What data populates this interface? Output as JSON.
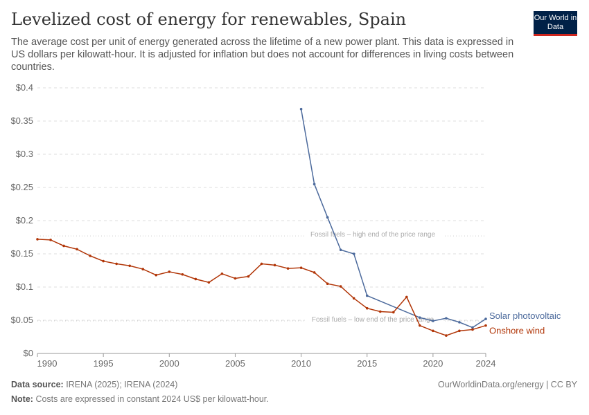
{
  "header": {
    "title": "Levelized cost of energy for renewables, Spain",
    "subtitle": "The average cost per unit of energy generated across the lifetime of a new power plant. This data is expressed in US dollars per kilowatt-hour. It is adjusted for inflation but does not account for differences in living costs between countries.",
    "logo": "Our World in Data"
  },
  "chart_data": {
    "type": "line",
    "x_ticks": [
      1990,
      1995,
      2000,
      2005,
      2010,
      2015,
      2020,
      2024
    ],
    "y_ticks": [
      {
        "v": 0,
        "label": "$0"
      },
      {
        "v": 0.05,
        "label": "$0.05"
      },
      {
        "v": 0.1,
        "label": "$0.1"
      },
      {
        "v": 0.15,
        "label": "$0.15"
      },
      {
        "v": 0.2,
        "label": "$0.2"
      },
      {
        "v": 0.25,
        "label": "$0.25"
      },
      {
        "v": 0.3,
        "label": "$0.3"
      },
      {
        "v": 0.35,
        "label": "$0.35"
      },
      {
        "v": 0.4,
        "label": "$0.4"
      }
    ],
    "xlim": [
      1990,
      2024
    ],
    "ylim": [
      0,
      0.4
    ],
    "grid": true,
    "legend": "right-end labels",
    "series": [
      {
        "name": "Solar photovoltaic",
        "color": "#4c6a9c",
        "x": [
          2010,
          2011,
          2012,
          2013,
          2014,
          2015,
          2019,
          2020,
          2021,
          2022,
          2023,
          2024
        ],
        "values": [
          0.368,
          0.255,
          0.205,
          0.156,
          0.15,
          0.087,
          0.054,
          0.049,
          0.053,
          0.047,
          0.039,
          0.052
        ]
      },
      {
        "name": "Onshore wind",
        "color": "#b13507",
        "x": [
          1990,
          1991,
          1992,
          1993,
          1994,
          1995,
          1996,
          1997,
          1998,
          1999,
          2000,
          2001,
          2002,
          2003,
          2004,
          2005,
          2006,
          2007,
          2008,
          2009,
          2010,
          2011,
          2012,
          2013,
          2014,
          2015,
          2016,
          2017,
          2018,
          2019,
          2020,
          2021,
          2022,
          2023,
          2024
        ],
        "values": [
          0.172,
          0.171,
          0.162,
          0.157,
          0.147,
          0.139,
          0.135,
          0.132,
          0.127,
          0.118,
          0.123,
          0.119,
          0.112,
          0.107,
          0.12,
          0.113,
          0.116,
          0.135,
          0.133,
          0.128,
          0.129,
          0.122,
          0.105,
          0.101,
          0.083,
          0.068,
          0.063,
          0.062,
          0.085,
          0.042,
          0.034,
          0.027,
          0.034,
          0.036,
          0.042
        ]
      }
    ],
    "reference_lines": [
      {
        "label": "Fossil fuels – high end of the price range",
        "value": 0.177
      },
      {
        "label": "Fossil fuels – low end of the price range",
        "value": 0.049
      }
    ]
  },
  "footer": {
    "source_label": "Data source:",
    "source": "IRENA (2025); IRENA (2024)",
    "credit": "OurWorldinData.org/energy | CC BY",
    "note_label": "Note:",
    "note": "Costs are expressed in constant 2024 US$ per kilowatt-hour."
  }
}
